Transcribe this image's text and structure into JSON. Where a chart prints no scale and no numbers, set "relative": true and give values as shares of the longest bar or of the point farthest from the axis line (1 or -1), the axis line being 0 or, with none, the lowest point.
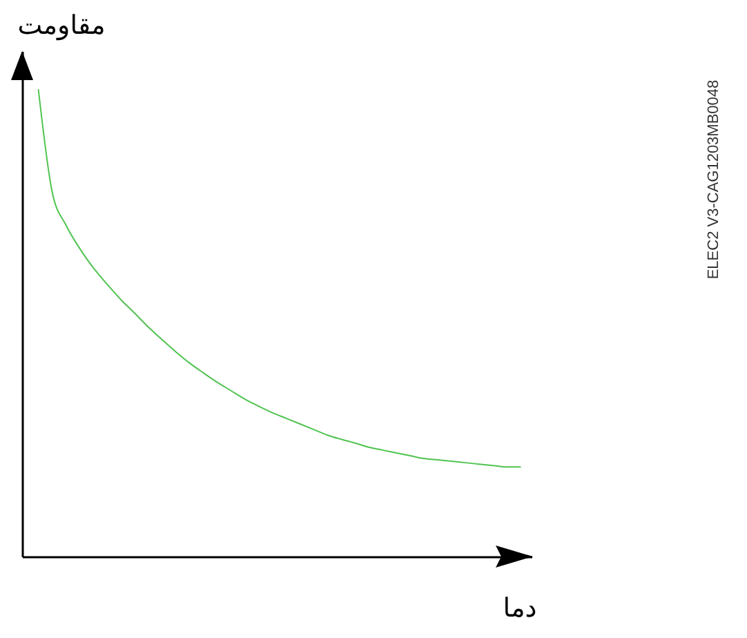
{
  "chart_data": {
    "type": "line",
    "xlabel": "دما",
    "ylabel": "مقاومت",
    "relative": true,
    "color": "#4fc34f",
    "categories": [
      null,
      null,
      null,
      null,
      null,
      null,
      null,
      null,
      null,
      null,
      null,
      null,
      null,
      null,
      null,
      null,
      null,
      null,
      null,
      null,
      null,
      null,
      null,
      null,
      null,
      null,
      null,
      null,
      null,
      null,
      null,
      null,
      null,
      null,
      null,
      null
    ],
    "values": [
      1,
      0.781,
      0.71,
      0.66,
      0.618,
      0.583,
      0.55,
      0.521,
      0.491,
      0.464,
      0.438,
      0.414,
      0.393,
      0.373,
      0.355,
      0.337,
      0.322,
      0.308,
      0.296,
      0.284,
      0.272,
      0.26,
      0.251,
      0.243,
      0.234,
      0.228,
      0.222,
      0.216,
      0.21,
      0.207,
      0.204,
      0.201,
      0.198,
      0.195,
      0.192,
      0.192
    ],
    "annotations": [
      "ELEC2 V3-CAG1203MB0048"
    ]
  }
}
